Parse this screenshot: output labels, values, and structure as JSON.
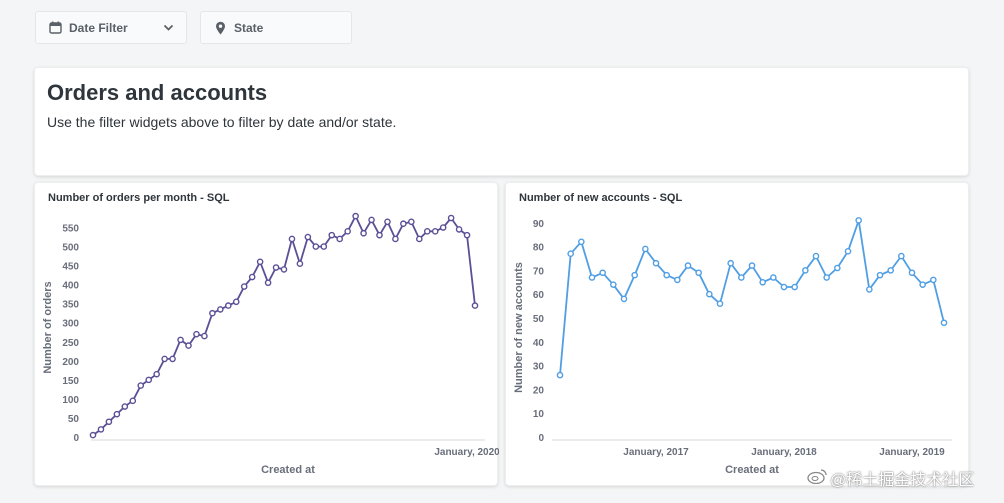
{
  "filters": {
    "date_label": "Date Filter",
    "state_label": "State"
  },
  "text_card": {
    "title": "Orders and accounts",
    "subtitle": "Use the filter widgets above to filter by date and/or state."
  },
  "colors": {
    "orders_line": "#5b4f96",
    "accounts_line": "#509ee3",
    "background": "#f4f5f6"
  },
  "watermark": "@稀土掘金技术社区",
  "chart_data": [
    {
      "type": "line",
      "title": "Number of orders per month - SQL",
      "xlabel": "Created at",
      "ylabel": "Number of orders",
      "ylim": [
        0,
        575
      ],
      "yticks": [
        "0",
        "50",
        "100",
        "150",
        "200",
        "250",
        "300",
        "350",
        "400",
        "450",
        "500",
        "550"
      ],
      "xticks": [
        {
          "label": "January, 2020",
          "index": 47
        }
      ],
      "grid": false,
      "series": [
        {
          "values": [
            5,
            20,
            40,
            60,
            80,
            95,
            135,
            150,
            165,
            205,
            205,
            255,
            240,
            270,
            265,
            325,
            335,
            345,
            355,
            395,
            420,
            460,
            405,
            445,
            440,
            520,
            455,
            525,
            500,
            500,
            530,
            520,
            540,
            580,
            535,
            570,
            530,
            565,
            520,
            560,
            565,
            520,
            540,
            540,
            550,
            575,
            545,
            530,
            345
          ]
        }
      ]
    },
    {
      "type": "line",
      "title": "Number of new accounts - SQL",
      "xlabel": "Created at",
      "ylabel": "Number of new accounts",
      "ylim": [
        0,
        92
      ],
      "yticks": [
        "0",
        "10",
        "20",
        "30",
        "40",
        "50",
        "60",
        "70",
        "80",
        "90"
      ],
      "xticks": [
        {
          "label": "January, 2017",
          "index": 9
        },
        {
          "label": "January, 2018",
          "index": 21
        },
        {
          "label": "January, 2019",
          "index": 33
        }
      ],
      "grid": false,
      "series": [
        {
          "values": [
            26,
            77,
            82,
            67,
            69,
            64,
            58,
            68,
            79,
            73,
            68,
            66,
            72,
            69,
            60,
            56,
            73,
            67,
            72,
            65,
            67,
            63,
            63,
            70,
            76,
            67,
            71,
            78,
            91,
            62,
            68,
            70,
            76,
            69,
            64,
            66,
            48
          ]
        }
      ]
    }
  ]
}
